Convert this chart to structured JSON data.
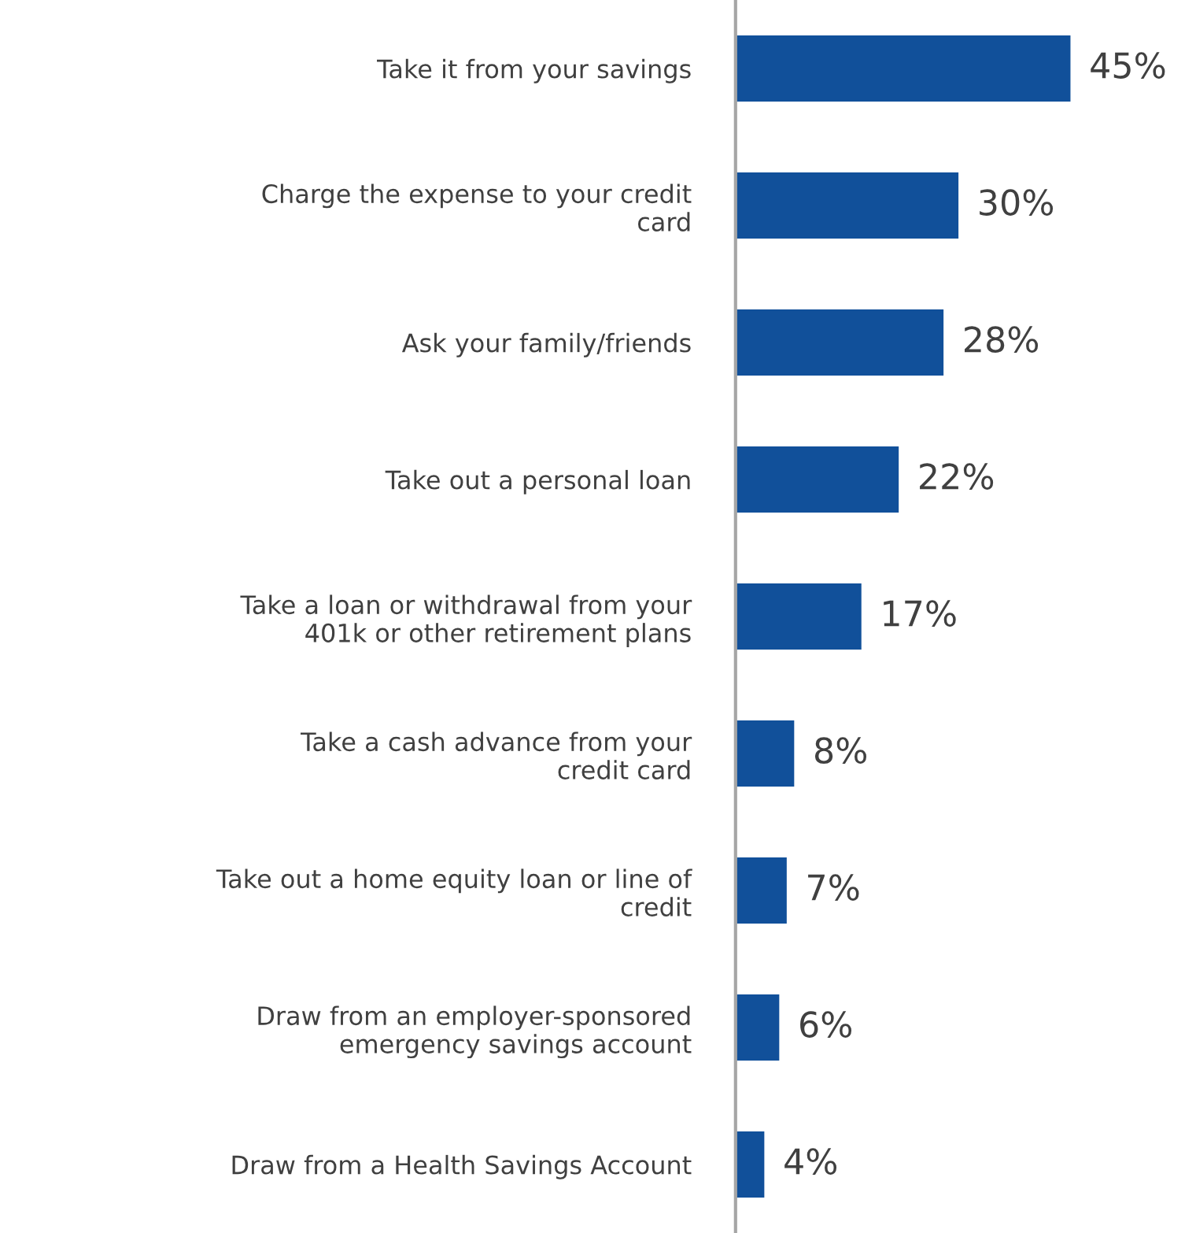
{
  "chart_data": {
    "type": "bar",
    "orientation": "horizontal",
    "categories": [
      "Take it from your savings",
      "Charge the expense to your credit\ncard",
      "Ask your family/friends",
      "Take out a personal loan",
      "Take a loan or withdrawal from your\n401k or other retirement plans",
      "Take a cash advance from your\ncredit card",
      "Take out a home equity loan or line of\ncredit",
      "Draw from an employer-sponsored\nemergency savings account",
      "Draw from a Health Savings Account"
    ],
    "values": [
      45,
      30,
      28,
      22,
      17,
      8,
      7,
      6,
      4
    ],
    "value_labels": [
      "45%",
      "30%",
      "28%",
      "22%",
      "17%",
      "8%",
      "7%",
      "6%",
      "4%"
    ],
    "color": "#11509a",
    "grid": false,
    "legend": false
  }
}
